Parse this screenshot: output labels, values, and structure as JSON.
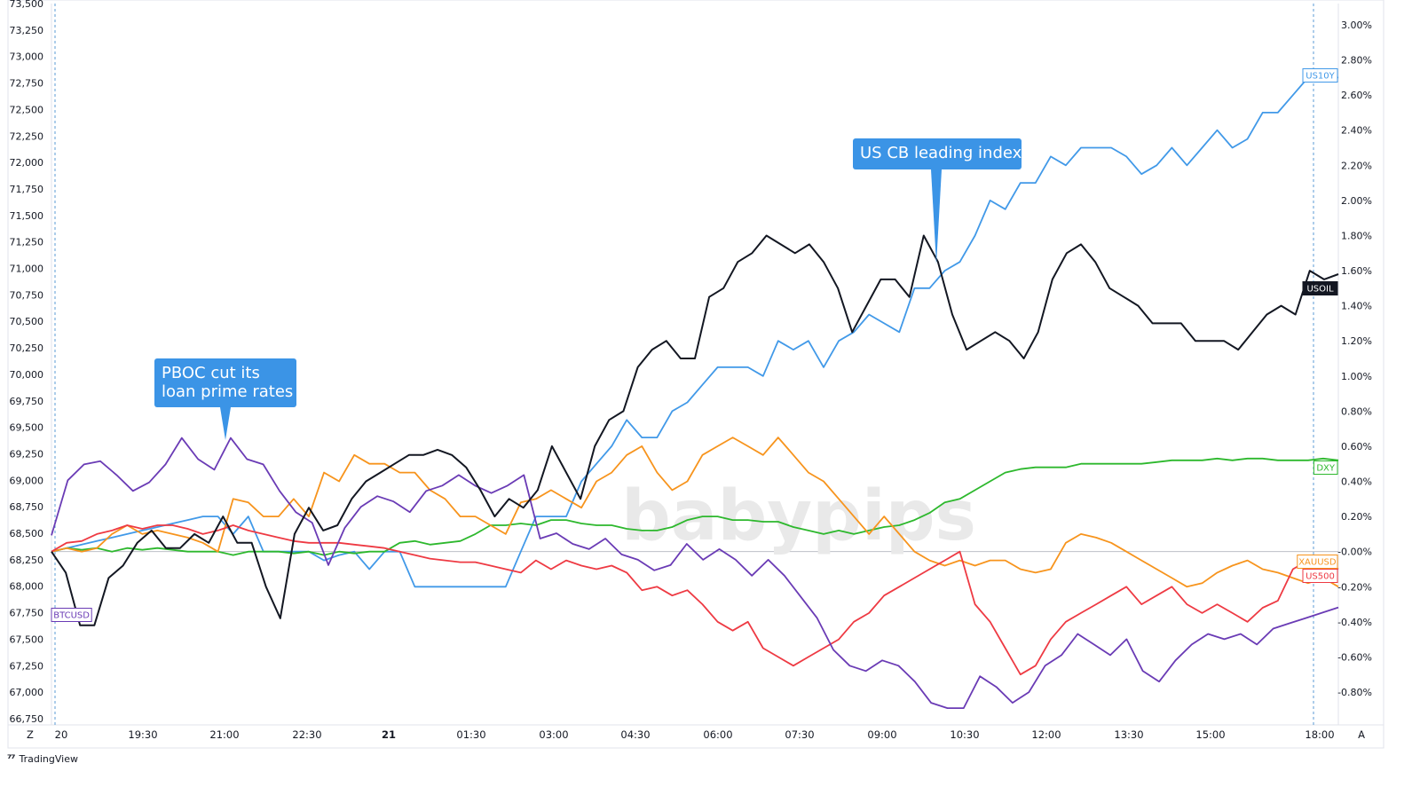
{
  "chart_data": {
    "type": "line",
    "watermark": "babypips",
    "y_left": {
      "ticks": [
        "73,500",
        "73,250",
        "73,000",
        "72,750",
        "72,500",
        "72,250",
        "72,000",
        "71,750",
        "71,500",
        "71,250",
        "71,000",
        "70,750",
        "70,500",
        "70,250",
        "70,000",
        "69,750",
        "69,500",
        "69,250",
        "69,000",
        "68,750",
        "68,500",
        "68,250",
        "68,000",
        "67,750",
        "67,500",
        "67,250",
        "67,000",
        "66,750"
      ],
      "ylim": [
        66750,
        73500
      ]
    },
    "y_right": {
      "ticks": [
        "3.00%",
        "2.80%",
        "2.60%",
        "2.40%",
        "2.20%",
        "2.00%",
        "1.80%",
        "1.60%",
        "1.40%",
        "1.20%",
        "1.00%",
        "0.80%",
        "0.60%",
        "0.40%",
        "0.20%",
        "-0.00%",
        "-0.20%",
        "-0.40%",
        "-0.60%",
        "-0.80%"
      ],
      "ylim": [
        -0.95,
        3.1
      ]
    },
    "x_ticks": [
      "20",
      "19:30",
      "21:00",
      "22:30",
      "21",
      "01:30",
      "03:00",
      "04:30",
      "06:00",
      "07:30",
      "09:00",
      "10:30",
      "12:00",
      "13:30",
      "15:00",
      "18:00"
    ],
    "x_corner_left": "Z",
    "x_corner_right": "A",
    "annotations": [
      {
        "text_lines": [
          "PBOC cut its",
          "loan prime rates"
        ],
        "at_index": 11
      },
      {
        "text_lines": [
          "US CB leading index"
        ],
        "at_index": 50
      }
    ],
    "series": [
      {
        "name": "US10Y",
        "color": "#4199e8",
        "axis": "right",
        "values": [
          0.0,
          0.02,
          0.04,
          0.06,
          0.08,
          0.1,
          0.12,
          0.14,
          0.16,
          0.18,
          0.2,
          0.2,
          0.1,
          0.2,
          0.0,
          0.0,
          0.0,
          0.0,
          -0.05,
          -0.02,
          0.0,
          -0.1,
          0.0,
          0.0,
          -0.2,
          -0.2,
          -0.2,
          -0.2,
          -0.2,
          -0.2,
          -0.2,
          0.0,
          0.2,
          0.2,
          0.2,
          0.4,
          0.5,
          0.6,
          0.75,
          0.65,
          0.65,
          0.8,
          0.85,
          0.95,
          1.05,
          1.05,
          1.05,
          1.0,
          1.2,
          1.15,
          1.2,
          1.05,
          1.2,
          1.25,
          1.35,
          1.3,
          1.25,
          1.5,
          1.5,
          1.6,
          1.65,
          1.8,
          2.0,
          1.95,
          2.1,
          2.1,
          2.25,
          2.2,
          2.3,
          2.3,
          2.3,
          2.25,
          2.15,
          2.2,
          2.3,
          2.2,
          2.3,
          2.4,
          2.3,
          2.35,
          2.5,
          2.5,
          2.6,
          2.7,
          2.7,
          2.7
        ]
      },
      {
        "name": "DXY",
        "color": "#2db82d",
        "axis": "right",
        "values": [
          0.0,
          0.02,
          0.01,
          0.02,
          0.0,
          0.02,
          0.01,
          0.02,
          0.01,
          0.0,
          0.0,
          0.0,
          -0.02,
          0.0,
          0.0,
          0.0,
          -0.01,
          0.0,
          -0.02,
          0.0,
          -0.01,
          0.0,
          0.0,
          0.05,
          0.06,
          0.04,
          0.05,
          0.06,
          0.1,
          0.15,
          0.15,
          0.16,
          0.15,
          0.18,
          0.18,
          0.16,
          0.15,
          0.15,
          0.13,
          0.12,
          0.12,
          0.14,
          0.18,
          0.2,
          0.2,
          0.18,
          0.18,
          0.17,
          0.17,
          0.14,
          0.12,
          0.1,
          0.12,
          0.1,
          0.12,
          0.14,
          0.15,
          0.18,
          0.22,
          0.28,
          0.3,
          0.35,
          0.4,
          0.45,
          0.47,
          0.48,
          0.48,
          0.48,
          0.5,
          0.5,
          0.5,
          0.5,
          0.5,
          0.51,
          0.52,
          0.52,
          0.52,
          0.53,
          0.52,
          0.53,
          0.53,
          0.52,
          0.52,
          0.52,
          0.53,
          0.52
        ]
      },
      {
        "name": "XAUUSD",
        "color": "#f7941d",
        "axis": "right",
        "values": [
          0.0,
          0.02,
          0.0,
          0.02,
          0.1,
          0.15,
          0.1,
          0.12,
          0.1,
          0.08,
          0.05,
          0.0,
          0.3,
          0.28,
          0.2,
          0.2,
          0.3,
          0.2,
          0.45,
          0.4,
          0.55,
          0.5,
          0.5,
          0.45,
          0.45,
          0.35,
          0.3,
          0.2,
          0.2,
          0.15,
          0.1,
          0.28,
          0.3,
          0.35,
          0.3,
          0.25,
          0.4,
          0.45,
          0.55,
          0.6,
          0.45,
          0.35,
          0.4,
          0.55,
          0.6,
          0.65,
          0.6,
          0.55,
          0.65,
          0.55,
          0.45,
          0.4,
          0.3,
          0.2,
          0.1,
          0.2,
          0.1,
          0.0,
          -0.05,
          -0.08,
          -0.05,
          -0.08,
          -0.05,
          -0.05,
          -0.1,
          -0.12,
          -0.1,
          0.05,
          0.1,
          0.08,
          0.05,
          0.0,
          -0.05,
          -0.1,
          -0.15,
          -0.2,
          -0.18,
          -0.12,
          -0.08,
          -0.05,
          -0.1,
          -0.12,
          -0.15,
          -0.18,
          -0.15,
          -0.2
        ]
      },
      {
        "name": "US500",
        "color": "#ee3a43",
        "axis": "right",
        "values": [
          0.0,
          0.05,
          0.06,
          0.1,
          0.12,
          0.15,
          0.13,
          0.15,
          0.15,
          0.13,
          0.1,
          0.12,
          0.15,
          0.12,
          0.1,
          0.08,
          0.06,
          0.05,
          0.05,
          0.05,
          0.04,
          0.03,
          0.02,
          0.0,
          -0.02,
          -0.04,
          -0.05,
          -0.06,
          -0.06,
          -0.08,
          -0.1,
          -0.12,
          -0.05,
          -0.1,
          -0.05,
          -0.08,
          -0.1,
          -0.08,
          -0.12,
          -0.22,
          -0.2,
          -0.25,
          -0.22,
          -0.3,
          -0.4,
          -0.45,
          -0.4,
          -0.55,
          -0.6,
          -0.65,
          -0.6,
          -0.55,
          -0.5,
          -0.4,
          -0.35,
          -0.25,
          -0.2,
          -0.15,
          -0.1,
          -0.05,
          0.0,
          -0.3,
          -0.4,
          -0.55,
          -0.7,
          -0.65,
          -0.5,
          -0.4,
          -0.35,
          -0.3,
          -0.25,
          -0.2,
          -0.3,
          -0.25,
          -0.2,
          -0.3,
          -0.35,
          -0.3,
          -0.35,
          -0.4,
          -0.32,
          -0.28,
          -0.1,
          -0.05,
          -0.05,
          -0.1
        ]
      },
      {
        "name": "BTCUSD",
        "color": "#6a3bb5",
        "axis": "left",
        "values": [
          68480,
          69000,
          69150,
          69180,
          69050,
          68900,
          68980,
          69150,
          69400,
          69200,
          69100,
          69400,
          69200,
          69150,
          68900,
          68700,
          68600,
          68200,
          68550,
          68750,
          68850,
          68800,
          68700,
          68900,
          68950,
          69050,
          68950,
          68880,
          68950,
          69050,
          68450,
          68500,
          68400,
          68350,
          68450,
          68300,
          68250,
          68150,
          68200,
          68400,
          68250,
          68350,
          68250,
          68100,
          68250,
          68100,
          67900,
          67700,
          67400,
          67250,
          67200,
          67300,
          67250,
          67100,
          66900,
          66850,
          66850,
          67150,
          67050,
          66900,
          67000,
          67250,
          67350,
          67550,
          67450,
          67350,
          67500,
          67200,
          67100,
          67300,
          67450,
          67550,
          67500,
          67550,
          67450,
          67600,
          67650,
          67700,
          67750,
          67800
        ]
      },
      {
        "name": "USOIL",
        "color": "#131722",
        "axis": "right",
        "values": [
          0.0,
          -0.12,
          -0.42,
          -0.42,
          -0.15,
          -0.08,
          0.05,
          0.12,
          0.02,
          0.02,
          0.1,
          0.05,
          0.2,
          0.05,
          0.05,
          -0.2,
          -0.38,
          0.1,
          0.25,
          0.12,
          0.15,
          0.3,
          0.4,
          0.45,
          0.5,
          0.55,
          0.55,
          0.58,
          0.55,
          0.48,
          0.35,
          0.2,
          0.3,
          0.25,
          0.35,
          0.6,
          0.45,
          0.3,
          0.6,
          0.75,
          0.8,
          1.05,
          1.15,
          1.2,
          1.1,
          1.1,
          1.45,
          1.5,
          1.65,
          1.7,
          1.8,
          1.75,
          1.7,
          1.75,
          1.65,
          1.5,
          1.25,
          1.4,
          1.55,
          1.55,
          1.45,
          1.8,
          1.65,
          1.35,
          1.15,
          1.2,
          1.25,
          1.2,
          1.1,
          1.25,
          1.55,
          1.7,
          1.75,
          1.65,
          1.5,
          1.45,
          1.4,
          1.3,
          1.3,
          1.3,
          1.2,
          1.2,
          1.2,
          1.15,
          1.25,
          1.35,
          1.4,
          1.35,
          1.6,
          1.55,
          1.58
        ]
      }
    ]
  }
}
